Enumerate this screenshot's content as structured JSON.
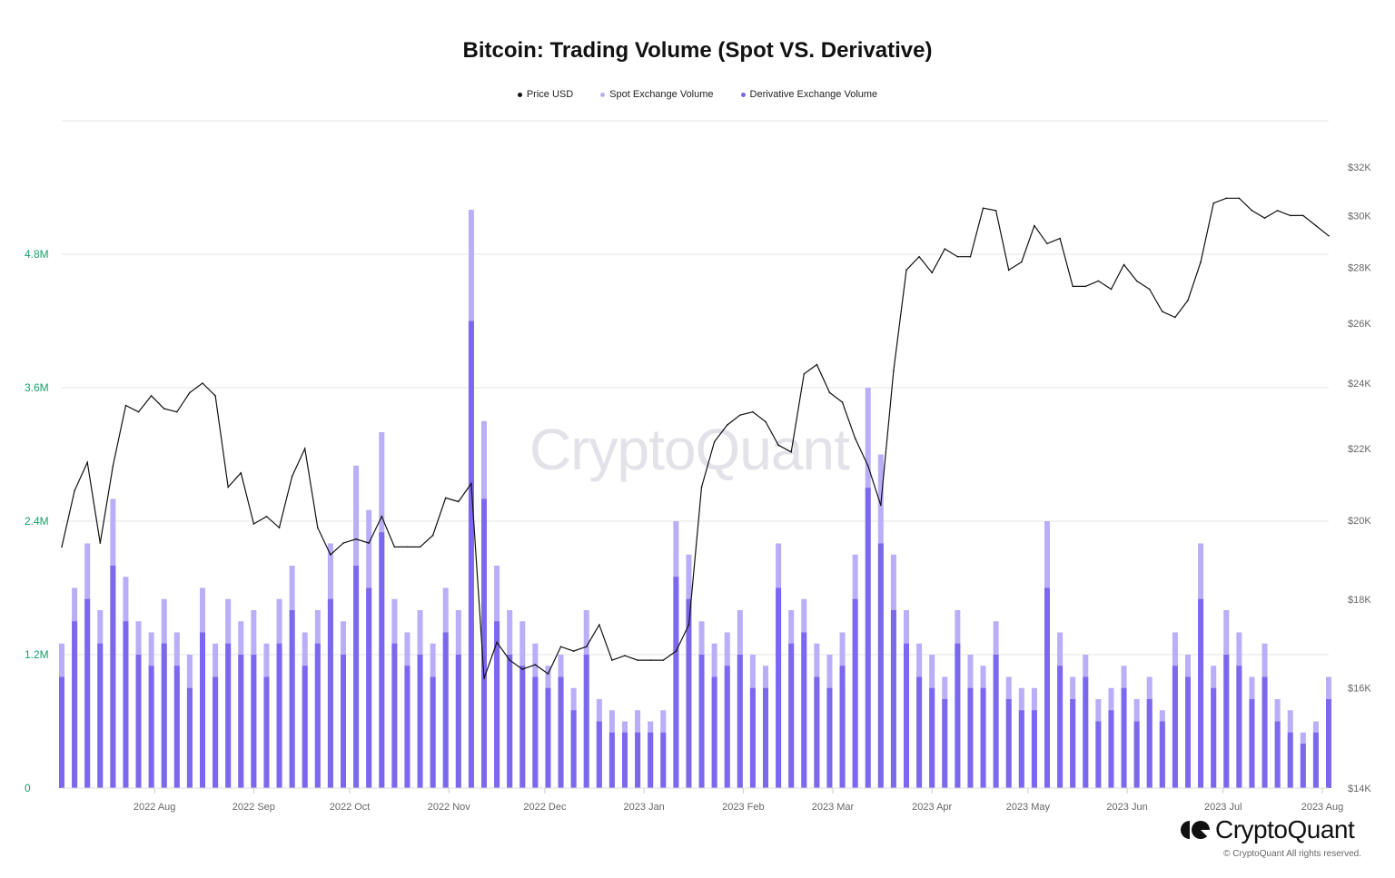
{
  "title": "Bitcoin: Trading Volume (Spot VS. Derivative)",
  "watermark": "CryptoQuant",
  "logo_text": "CryptoQuant",
  "copyright": "© CryptoQuant All rights reserved.",
  "colors": {
    "price": "#111111",
    "spot": "#b9aef7",
    "derivative": "#7b68ee",
    "left_axis": "#1a9e6a",
    "grid": "#e6e6e6"
  },
  "chart_data": {
    "type": "bar+line",
    "title": "Bitcoin: Trading Volume (Spot VS. Derivative)",
    "legend": {
      "placement": "top",
      "entries": [
        "Price USD",
        "Spot Exchange Volume",
        "Derivative Exchange Volume"
      ]
    },
    "grid": true,
    "left_axis": {
      "ylim": [
        0,
        5400000
      ],
      "ticks": [
        {
          "v": 0,
          "label": "0"
        },
        {
          "v": 1200000,
          "label": "1.2M"
        },
        {
          "v": 2400000,
          "label": "2.4M"
        },
        {
          "v": 3600000,
          "label": "3.6M"
        },
        {
          "v": 4800000,
          "label": "4.8M"
        }
      ]
    },
    "right_axis": {
      "scale": "log",
      "ylim": [
        14000,
        32000
      ],
      "ticks": [
        {
          "v": 14000,
          "label": "$14K"
        },
        {
          "v": 16000,
          "label": "$16K"
        },
        {
          "v": 18000,
          "label": "$18K"
        },
        {
          "v": 20000,
          "label": "$20K"
        },
        {
          "v": 22000,
          "label": "$22K"
        },
        {
          "v": 24000,
          "label": "$24K"
        },
        {
          "v": 26000,
          "label": "$26K"
        },
        {
          "v": 28000,
          "label": "$28K"
        },
        {
          "v": 30000,
          "label": "$30K"
        },
        {
          "v": 32000,
          "label": "$32K"
        }
      ]
    },
    "x_ticks": [
      {
        "label": "2022 Aug",
        "date": "2022-08-01"
      },
      {
        "label": "2022 Sep",
        "date": "2022-09-01"
      },
      {
        "label": "2022 Oct",
        "date": "2022-10-01"
      },
      {
        "label": "2022 Nov",
        "date": "2022-11-01"
      },
      {
        "label": "2022 Dec",
        "date": "2022-12-01"
      },
      {
        "label": "2023 Jan",
        "date": "2023-01-01"
      },
      {
        "label": "2023 Feb",
        "date": "2023-02-01"
      },
      {
        "label": "2023 Mar",
        "date": "2023-03-01"
      },
      {
        "label": "2023 Apr",
        "date": "2023-04-01"
      },
      {
        "label": "2023 May",
        "date": "2023-05-01"
      },
      {
        "label": "2023 Jun",
        "date": "2023-06-01"
      },
      {
        "label": "2023 Jul",
        "date": "2023-07-01"
      },
      {
        "label": "2023 Aug",
        "date": "2023-08-01"
      }
    ],
    "x": [
      "2022-07-03",
      "2022-07-07",
      "2022-07-11",
      "2022-07-15",
      "2022-07-19",
      "2022-07-23",
      "2022-07-27",
      "2022-07-31",
      "2022-08-04",
      "2022-08-08",
      "2022-08-12",
      "2022-08-16",
      "2022-08-20",
      "2022-08-24",
      "2022-08-28",
      "2022-09-01",
      "2022-09-05",
      "2022-09-09",
      "2022-09-13",
      "2022-09-17",
      "2022-09-21",
      "2022-09-25",
      "2022-09-29",
      "2022-10-03",
      "2022-10-07",
      "2022-10-11",
      "2022-10-15",
      "2022-10-19",
      "2022-10-23",
      "2022-10-27",
      "2022-10-31",
      "2022-11-04",
      "2022-11-08",
      "2022-11-12",
      "2022-11-16",
      "2022-11-20",
      "2022-11-24",
      "2022-11-28",
      "2022-12-02",
      "2022-12-06",
      "2022-12-10",
      "2022-12-14",
      "2022-12-18",
      "2022-12-22",
      "2022-12-26",
      "2022-12-30",
      "2023-01-03",
      "2023-01-07",
      "2023-01-11",
      "2023-01-15",
      "2023-01-19",
      "2023-01-23",
      "2023-01-27",
      "2023-01-31",
      "2023-02-04",
      "2023-02-08",
      "2023-02-12",
      "2023-02-16",
      "2023-02-20",
      "2023-02-24",
      "2023-02-28",
      "2023-03-04",
      "2023-03-08",
      "2023-03-12",
      "2023-03-16",
      "2023-03-20",
      "2023-03-24",
      "2023-03-28",
      "2023-04-01",
      "2023-04-05",
      "2023-04-09",
      "2023-04-13",
      "2023-04-17",
      "2023-04-21",
      "2023-04-25",
      "2023-04-29",
      "2023-05-03",
      "2023-05-07",
      "2023-05-11",
      "2023-05-15",
      "2023-05-19",
      "2023-05-23",
      "2023-05-27",
      "2023-05-31",
      "2023-06-04",
      "2023-06-08",
      "2023-06-12",
      "2023-06-16",
      "2023-06-20",
      "2023-06-24",
      "2023-06-28",
      "2023-07-02",
      "2023-07-06",
      "2023-07-10",
      "2023-07-14",
      "2023-07-18",
      "2023-07-22",
      "2023-07-26",
      "2023-07-30",
      "2023-08-03"
    ],
    "series": [
      {
        "name": "Price USD",
        "type": "line",
        "axis": "right",
        "values": [
          19300,
          20800,
          21600,
          19400,
          21500,
          23300,
          23100,
          23600,
          23200,
          23100,
          23700,
          24000,
          23600,
          20900,
          21300,
          19900,
          20100,
          19800,
          21200,
          22000,
          19800,
          19100,
          19400,
          19500,
          19400,
          20100,
          19300,
          19300,
          19300,
          19600,
          20600,
          20500,
          21000,
          16200,
          17000,
          16600,
          16400,
          16500,
          16300,
          16900,
          16800,
          16900,
          17400,
          16600,
          16700,
          16600,
          16600,
          16600,
          16800,
          17400,
          20900,
          22200,
          22700,
          23000,
          23100,
          22800,
          22100,
          21900,
          24300,
          24600,
          23700,
          23400,
          22300,
          21500,
          20400,
          24400,
          27900,
          28400,
          27800,
          28700,
          28400,
          28400,
          30300,
          30200,
          27900,
          28200,
          29600,
          28900,
          29100,
          27300,
          27300,
          27500,
          27200,
          28100,
          27500,
          27200,
          26400,
          26200,
          26800,
          28200,
          30500,
          30700,
          30700,
          30200,
          29900,
          30200,
          30000,
          30000,
          29600,
          29200
        ]
      },
      {
        "name": "Spot Exchange Volume",
        "type": "bar",
        "axis": "left",
        "values": [
          1300000,
          1800000,
          2200000,
          1600000,
          2600000,
          1900000,
          1500000,
          1400000,
          1700000,
          1400000,
          1200000,
          1800000,
          1300000,
          1700000,
          1500000,
          1600000,
          1300000,
          1700000,
          2000000,
          1400000,
          1600000,
          2200000,
          1500000,
          2900000,
          2500000,
          3200000,
          1700000,
          1400000,
          1600000,
          1300000,
          1800000,
          1600000,
          5200000,
          3300000,
          2000000,
          1600000,
          1500000,
          1300000,
          1100000,
          1200000,
          900000,
          1600000,
          800000,
          700000,
          600000,
          700000,
          600000,
          700000,
          2400000,
          2100000,
          1500000,
          1300000,
          1400000,
          1600000,
          1200000,
          1100000,
          2200000,
          1600000,
          1700000,
          1300000,
          1200000,
          1400000,
          2100000,
          3600000,
          3000000,
          2100000,
          1600000,
          1300000,
          1200000,
          1000000,
          1600000,
          1200000,
          1100000,
          1500000,
          1000000,
          900000,
          900000,
          2400000,
          1400000,
          1000000,
          1200000,
          800000,
          900000,
          1100000,
          800000,
          1000000,
          700000,
          1400000,
          1200000,
          2200000,
          1100000,
          1600000,
          1400000,
          1000000,
          1300000,
          800000,
          700000,
          500000,
          600000,
          1000000
        ]
      },
      {
        "name": "Derivative Exchange Volume",
        "type": "bar",
        "axis": "left",
        "values": [
          1000000,
          1500000,
          1700000,
          1300000,
          2000000,
          1500000,
          1200000,
          1100000,
          1300000,
          1100000,
          900000,
          1400000,
          1000000,
          1300000,
          1200000,
          1200000,
          1000000,
          1300000,
          1600000,
          1100000,
          1300000,
          1700000,
          1200000,
          2000000,
          1800000,
          2300000,
          1300000,
          1100000,
          1200000,
          1000000,
          1400000,
          1200000,
          4200000,
          2600000,
          1500000,
          1200000,
          1100000,
          1000000,
          900000,
          1000000,
          700000,
          1200000,
          600000,
          500000,
          500000,
          500000,
          500000,
          500000,
          1900000,
          1700000,
          1200000,
          1000000,
          1100000,
          1200000,
          900000,
          900000,
          1800000,
          1300000,
          1400000,
          1000000,
          900000,
          1100000,
          1700000,
          2700000,
          2200000,
          1600000,
          1300000,
          1000000,
          900000,
          800000,
          1300000,
          900000,
          900000,
          1200000,
          800000,
          700000,
          700000,
          1800000,
          1100000,
          800000,
          1000000,
          600000,
          700000,
          900000,
          600000,
          800000,
          600000,
          1100000,
          1000000,
          1700000,
          900000,
          1200000,
          1100000,
          800000,
          1000000,
          600000,
          500000,
          400000,
          500000,
          800000
        ]
      }
    ]
  }
}
